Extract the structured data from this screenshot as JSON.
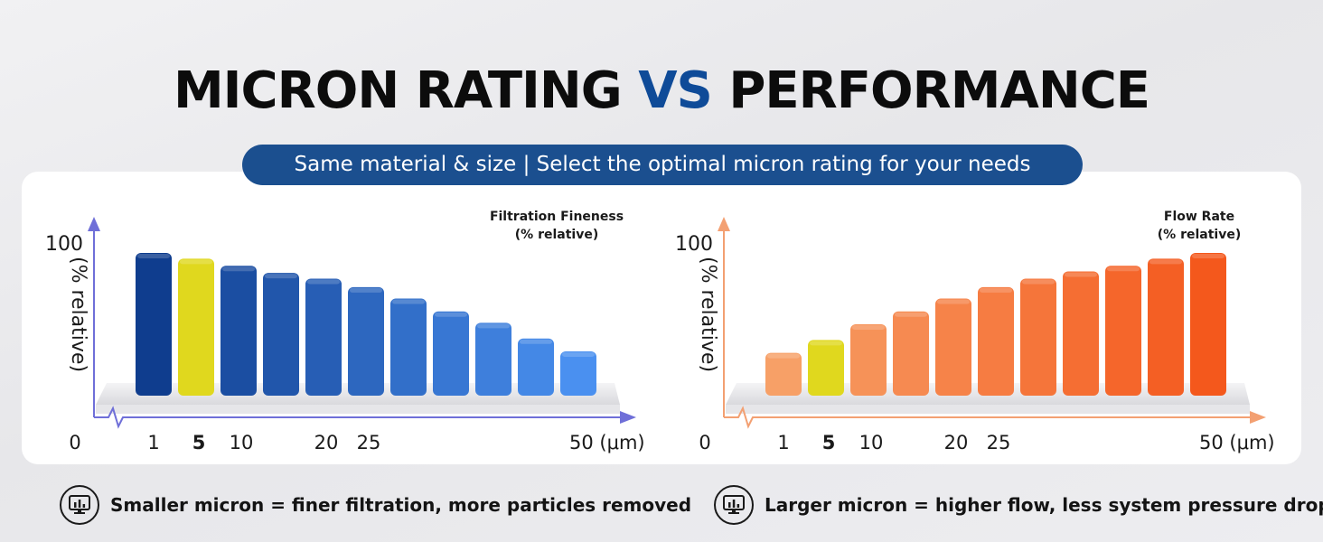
{
  "header": {
    "title_part1": "MICRON RATING ",
    "title_vs": "VS",
    "title_part2": " PERFORMANCE",
    "subtitle": "Same material & size | Select the optimal micron rating for your needs"
  },
  "colors": {
    "title_accent": "#0f4b98",
    "pill": "#1b4f8f",
    "fineness_bar_dark": "#0f3d8e",
    "fineness_bar_light": "#4a90f0",
    "flow_bar_light": "#f7a067",
    "flow_bar_dark": "#f4581c",
    "highlight_bar": "#e0d81e",
    "fineness_axis": "#6f6fd8",
    "flow_axis": "#f3a072"
  },
  "chart_data": [
    {
      "type": "bar",
      "title": "Filtration Fineness",
      "title_line2": "(% relative)",
      "ylabel": "(% relative)",
      "y_tick": "100",
      "x_ticks": [
        "0",
        "1",
        "5",
        "10",
        "20",
        "25",
        "50 (μm)"
      ],
      "highlight_tick": "5",
      "highlight_index": 1,
      "ylim": [
        0,
        100
      ],
      "values": [
        100,
        96,
        91,
        86,
        82,
        76,
        68,
        59,
        51,
        40,
        31
      ],
      "values_note": ""
    },
    {
      "type": "bar",
      "title": "Flow Rate",
      "title_line2": "(% relative)",
      "ylabel": "(% relative)",
      "y_tick": "100",
      "x_ticks": [
        "0",
        "1",
        "5",
        "10",
        "20",
        "25",
        "50 (μm)"
      ],
      "highlight_tick": "5",
      "highlight_index": 1,
      "ylim": [
        0,
        100
      ],
      "values": [
        30,
        39,
        50,
        59,
        68,
        76,
        82,
        87,
        91,
        96,
        100
      ]
    }
  ],
  "footer": {
    "left_icon": "monitor-chart-icon",
    "left_text": "Smaller micron = finer filtration, more particles removed",
    "right_icon": "monitor-chart-icon",
    "right_text": "Larger micron = higher flow, less system pressure drop"
  }
}
